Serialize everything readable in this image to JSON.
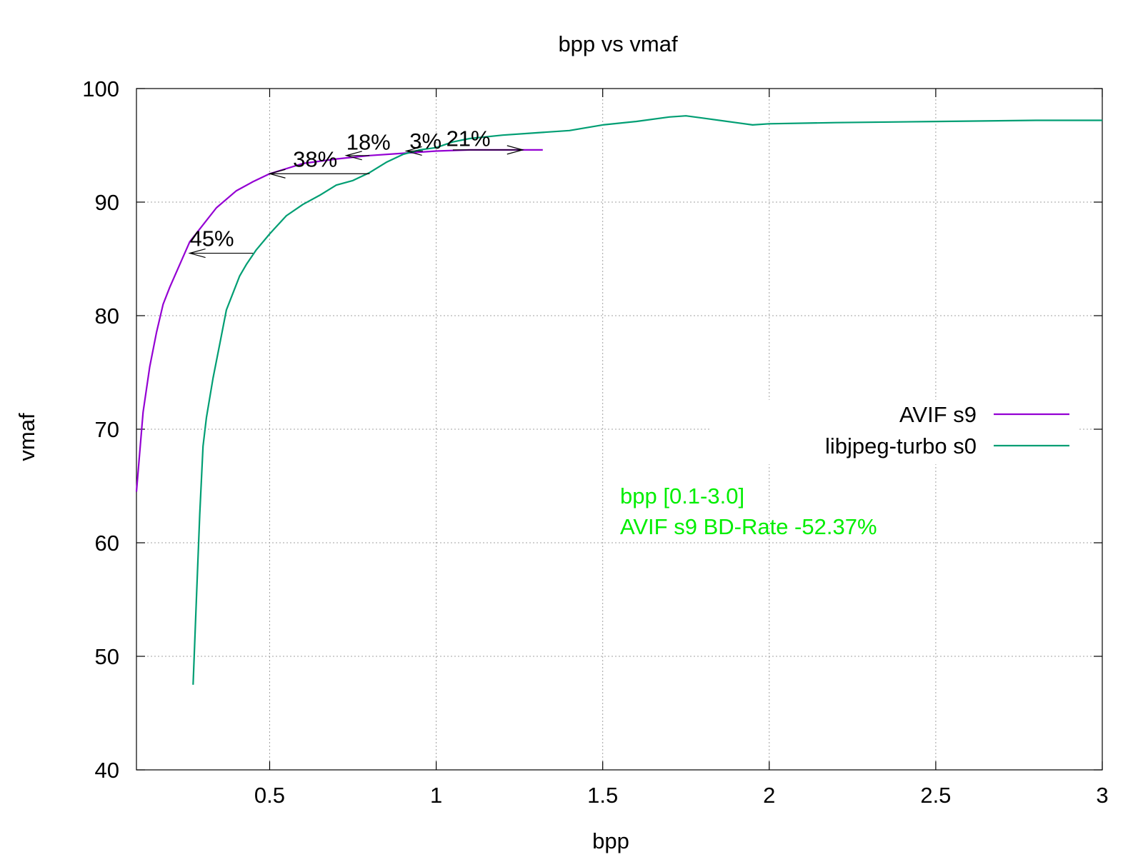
{
  "chart_data": {
    "type": "line",
    "title": "bpp vs vmaf",
    "xlabel": "bpp",
    "ylabel": "vmaf",
    "xlim": [
      0.1,
      3.0
    ],
    "ylim": [
      40,
      100
    ],
    "xticks": [
      0.5,
      1,
      1.5,
      2,
      2.5,
      3
    ],
    "xtick_labels": [
      "0.5",
      "1",
      "1.5",
      "2",
      "2.5",
      "3"
    ],
    "yticks": [
      40,
      50,
      60,
      70,
      80,
      90,
      100
    ],
    "ytick_labels": [
      "40",
      "50",
      "60",
      "70",
      "80",
      "90",
      "100"
    ],
    "grid": true,
    "legend_position": "right",
    "series": [
      {
        "name": "AVIF s9",
        "color": "#9400d3",
        "x": [
          0.1,
          0.12,
          0.14,
          0.16,
          0.18,
          0.2,
          0.23,
          0.26,
          0.3,
          0.34,
          0.4,
          0.45,
          0.5,
          0.6,
          0.7,
          0.8,
          0.9,
          1.0,
          1.1,
          1.2,
          1.32
        ],
        "y": [
          64.5,
          71.5,
          75.5,
          78.5,
          81.0,
          82.5,
          84.5,
          86.5,
          88.0,
          89.5,
          91.0,
          91.8,
          92.5,
          93.4,
          93.8,
          94.1,
          94.3,
          94.5,
          94.6,
          94.6,
          94.6
        ]
      },
      {
        "name": "libjpeg-turbo s0",
        "color": "#009e73",
        "x": [
          0.27,
          0.28,
          0.29,
          0.3,
          0.31,
          0.33,
          0.35,
          0.37,
          0.39,
          0.41,
          0.43,
          0.46,
          0.5,
          0.55,
          0.6,
          0.65,
          0.7,
          0.75,
          0.8,
          0.85,
          0.9,
          0.95,
          1.0,
          1.05,
          1.1,
          1.2,
          1.3,
          1.4,
          1.5,
          1.6,
          1.7,
          1.75,
          1.8,
          1.9,
          1.95,
          2.0,
          2.2,
          2.5,
          2.8,
          3.0
        ],
        "y": [
          47.5,
          55.0,
          62.5,
          68.5,
          71.0,
          74.5,
          77.5,
          80.5,
          82.0,
          83.5,
          84.5,
          85.8,
          87.2,
          88.8,
          89.8,
          90.6,
          91.5,
          91.9,
          92.6,
          93.5,
          94.2,
          94.6,
          94.8,
          95.3,
          95.6,
          95.9,
          96.1,
          96.3,
          96.8,
          97.1,
          97.5,
          97.6,
          97.4,
          97.0,
          96.8,
          96.9,
          97.0,
          97.1,
          97.2,
          97.2
        ]
      }
    ],
    "annotations": [
      {
        "text": "45%",
        "x": 0.26,
        "y": 86.0,
        "arrow_from": 0.45,
        "arrow_to": 0.26,
        "arrow_y": 85.5
      },
      {
        "text": "38%",
        "x": 0.57,
        "y": 93.0,
        "arrow_from": 0.8,
        "arrow_to": 0.5,
        "arrow_y": 92.5
      },
      {
        "text": "18%",
        "x": 0.73,
        "y": 94.5,
        "arrow_from": 0.8,
        "arrow_to": 0.73,
        "arrow_y": 94.1
      },
      {
        "text": "3%",
        "x": 0.92,
        "y": 94.6,
        "arrow_from": 0.96,
        "arrow_to": 0.91,
        "arrow_y": 94.5
      },
      {
        "text": "21%",
        "x": 1.03,
        "y": 94.8,
        "arrow_from": 1.05,
        "arrow_to": 1.26,
        "arrow_y": 94.6
      }
    ],
    "note_lines": [
      "bpp [0.1-3.0]",
      "AVIF s9 BD-Rate -52.37%"
    ],
    "note_color": "#00ee00"
  }
}
